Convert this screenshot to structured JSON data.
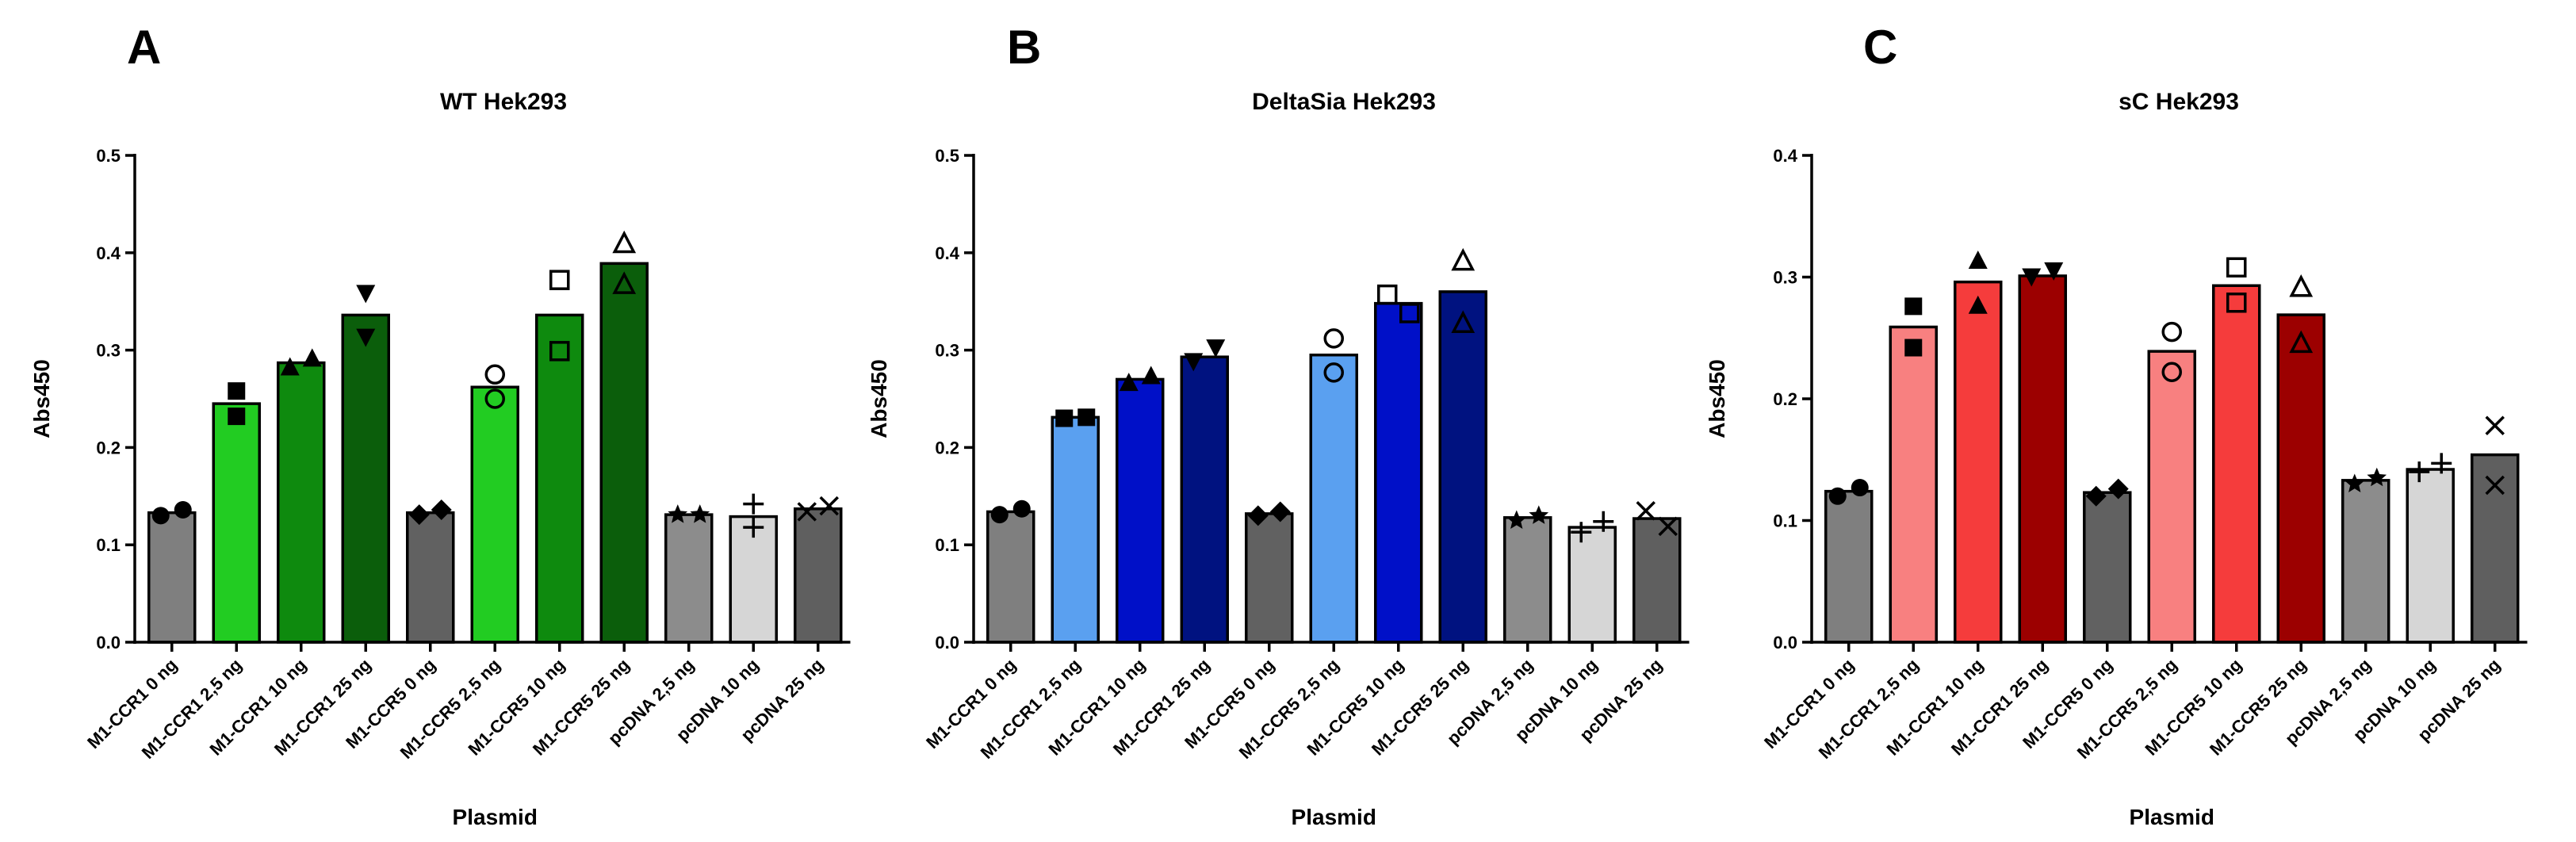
{
  "chart_data": [
    {
      "type": "bar",
      "panel": "A",
      "title": "WT Hek293",
      "xlabel": "Plasmid",
      "ylabel": "Abs450",
      "ylim": [
        0,
        0.5
      ],
      "yticks": [
        "0.0",
        "0.1",
        "0.2",
        "0.3",
        "0.4",
        "0.5"
      ],
      "categories": [
        "M1-CCR1 0 ng",
        "M1-CCR1 2,5 ng",
        "M1-CCR1 10 ng",
        "M1-CCR1 25 ng",
        "M1-CCR5 0 ng",
        "M1-CCR5 2,5 ng",
        "M1-CCR5 10 ng",
        "M1-CCR5 25 ng",
        "pcDNA 2,5 ng",
        "pcDNA 10 ng",
        "pcDNA 25 ng"
      ],
      "values": [
        0.133,
        0.245,
        0.287,
        0.336,
        0.133,
        0.262,
        0.336,
        0.389,
        0.131,
        0.129,
        0.137
      ],
      "replicates": [
        [
          0.13,
          0.136
        ],
        [
          0.258,
          0.232
        ],
        [
          0.283,
          0.292
        ],
        [
          0.358,
          0.313
        ],
        [
          0.131,
          0.136
        ],
        [
          0.275,
          0.25
        ],
        [
          0.372,
          0.299
        ],
        [
          0.41,
          0.368
        ],
        [
          0.131,
          0.131
        ],
        [
          0.142,
          0.118
        ],
        [
          0.134,
          0.14
        ]
      ],
      "colors": [
        "#7f7f7f",
        "#22cc22",
        "#0e8a0e",
        "#0b5e0b",
        "#616161",
        "#22cc22",
        "#0e8a0e",
        "#0b5e0b",
        "#8c8c8c",
        "#d6d6d6",
        "#5f5f5f"
      ],
      "markers": [
        "circle",
        "square",
        "triangle-up",
        "triangle-down",
        "diamond",
        "circle-open",
        "square-open",
        "triangle-open",
        "star",
        "plus",
        "cross"
      ]
    },
    {
      "type": "bar",
      "panel": "B",
      "title": "DeltaSia Hek293",
      "xlabel": "Plasmid",
      "ylabel": "Abs450",
      "ylim": [
        0,
        0.5
      ],
      "yticks": [
        "0.0",
        "0.1",
        "0.2",
        "0.3",
        "0.4",
        "0.5"
      ],
      "categories": [
        "M1-CCR1 0 ng",
        "M1-CCR1 2,5 ng",
        "M1-CCR1 10 ng",
        "M1-CCR1 25 ng",
        "M1-CCR5 0 ng",
        "M1-CCR5 2,5 ng",
        "M1-CCR5 10 ng",
        "M1-CCR5 25 ng",
        "pcDNA 2,5 ng",
        "pcDNA 10 ng",
        "pcDNA 25 ng"
      ],
      "values": [
        0.134,
        0.231,
        0.27,
        0.293,
        0.132,
        0.295,
        0.348,
        0.36,
        0.128,
        0.118,
        0.127
      ],
      "replicates": [
        [
          0.131,
          0.137
        ],
        [
          0.23,
          0.231
        ],
        [
          0.267,
          0.274
        ],
        [
          0.288,
          0.302
        ],
        [
          0.13,
          0.134
        ],
        [
          0.312,
          0.277
        ],
        [
          0.357,
          0.338
        ],
        [
          0.392,
          0.328
        ],
        [
          0.125,
          0.13
        ],
        [
          0.113,
          0.124
        ],
        [
          0.135,
          0.119
        ]
      ],
      "colors": [
        "#7f7f7f",
        "#5aa0f0",
        "#0010c8",
        "#001280",
        "#616161",
        "#5aa0f0",
        "#0010c8",
        "#001280",
        "#8c8c8c",
        "#d6d6d6",
        "#5f5f5f"
      ],
      "markers": [
        "circle",
        "square",
        "triangle-up",
        "triangle-down",
        "diamond",
        "circle-open",
        "square-open",
        "triangle-open",
        "star",
        "plus",
        "cross"
      ]
    },
    {
      "type": "bar",
      "panel": "C",
      "title": "sC Hek293",
      "xlabel": "Plasmid",
      "ylabel": "Abs450",
      "ylim": [
        0,
        0.4
      ],
      "yticks": [
        "0.0",
        "0.1",
        "0.2",
        "0.3",
        "0.4"
      ],
      "categories": [
        "M1-CCR1 0 ng",
        "M1-CCR1 2,5 ng",
        "M1-CCR1 10 ng",
        "M1-CCR1 25 ng",
        "M1-CCR5 0 ng",
        "M1-CCR5 2,5 ng",
        "M1-CCR5 10 ng",
        "M1-CCR5 25 ng",
        "pcDNA 2,5 ng",
        "pcDNA 10 ng",
        "pcDNA 25 ng"
      ],
      "values": [
        0.124,
        0.259,
        0.296,
        0.301,
        0.123,
        0.239,
        0.293,
        0.269,
        0.133,
        0.142,
        0.154
      ],
      "replicates": [
        [
          0.12,
          0.127
        ],
        [
          0.276,
          0.242
        ],
        [
          0.314,
          0.277
        ],
        [
          0.3,
          0.305
        ],
        [
          0.12,
          0.126
        ],
        [
          0.255,
          0.222
        ],
        [
          0.308,
          0.279
        ],
        [
          0.292,
          0.246
        ],
        [
          0.13,
          0.135
        ],
        [
          0.14,
          0.147
        ],
        [
          0.178,
          0.129
        ]
      ],
      "colors": [
        "#7f7f7f",
        "#f88080",
        "#f53c3c",
        "#9c0000",
        "#616161",
        "#f88080",
        "#f53c3c",
        "#9c0000",
        "#8c8c8c",
        "#d6d6d6",
        "#5f5f5f"
      ],
      "markers": [
        "circle",
        "square",
        "triangle-up",
        "triangle-down",
        "diamond",
        "circle-open",
        "square-open",
        "triangle-open",
        "star",
        "plus",
        "cross"
      ]
    }
  ]
}
